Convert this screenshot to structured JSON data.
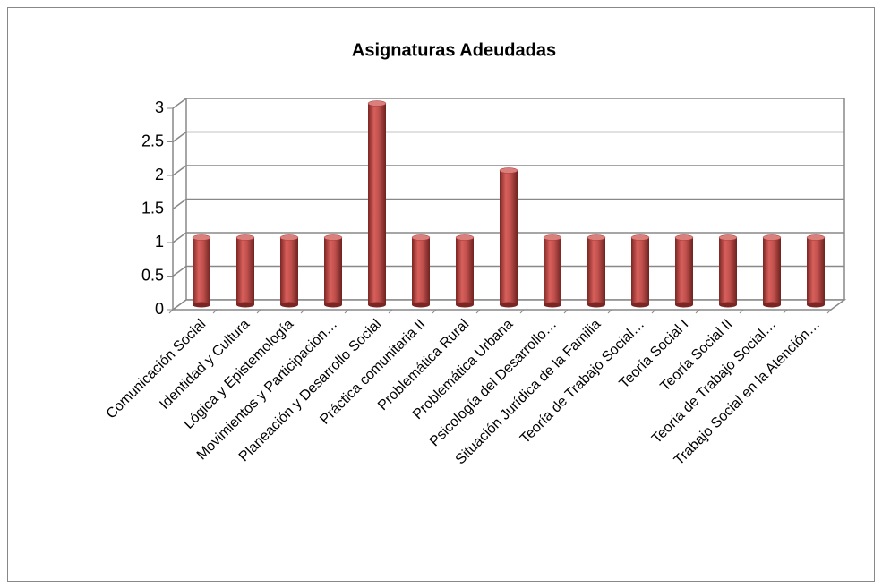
{
  "chart_data": {
    "type": "bar",
    "title": "Asignaturas Adeudadas",
    "categories": [
      "Comunicación Social",
      "Identidad y Cultura",
      "Lógica y Epistemología",
      "Movimientos y Participación…",
      "Planeación y Desarrollo Social",
      "Práctica comunitaria II",
      "Problemática Rural",
      "Problemática Urbana",
      "Psicología del Desarrollo…",
      "Situación Jurídica de la Familia",
      "Teoría de Trabajo Social…",
      "Teoría Social I",
      "Teoría Social II",
      "Teoría de Trabajo Social…",
      "Trabajo Social en la Atención…"
    ],
    "values": [
      1,
      1,
      1,
      1,
      3,
      1,
      1,
      2,
      1,
      1,
      1,
      1,
      1,
      1,
      1
    ],
    "color": "#c0504d",
    "ylim": [
      0,
      3
    ],
    "yticks": [
      0,
      0.5,
      1,
      1.5,
      2,
      2.5,
      3
    ],
    "grid": true
  }
}
